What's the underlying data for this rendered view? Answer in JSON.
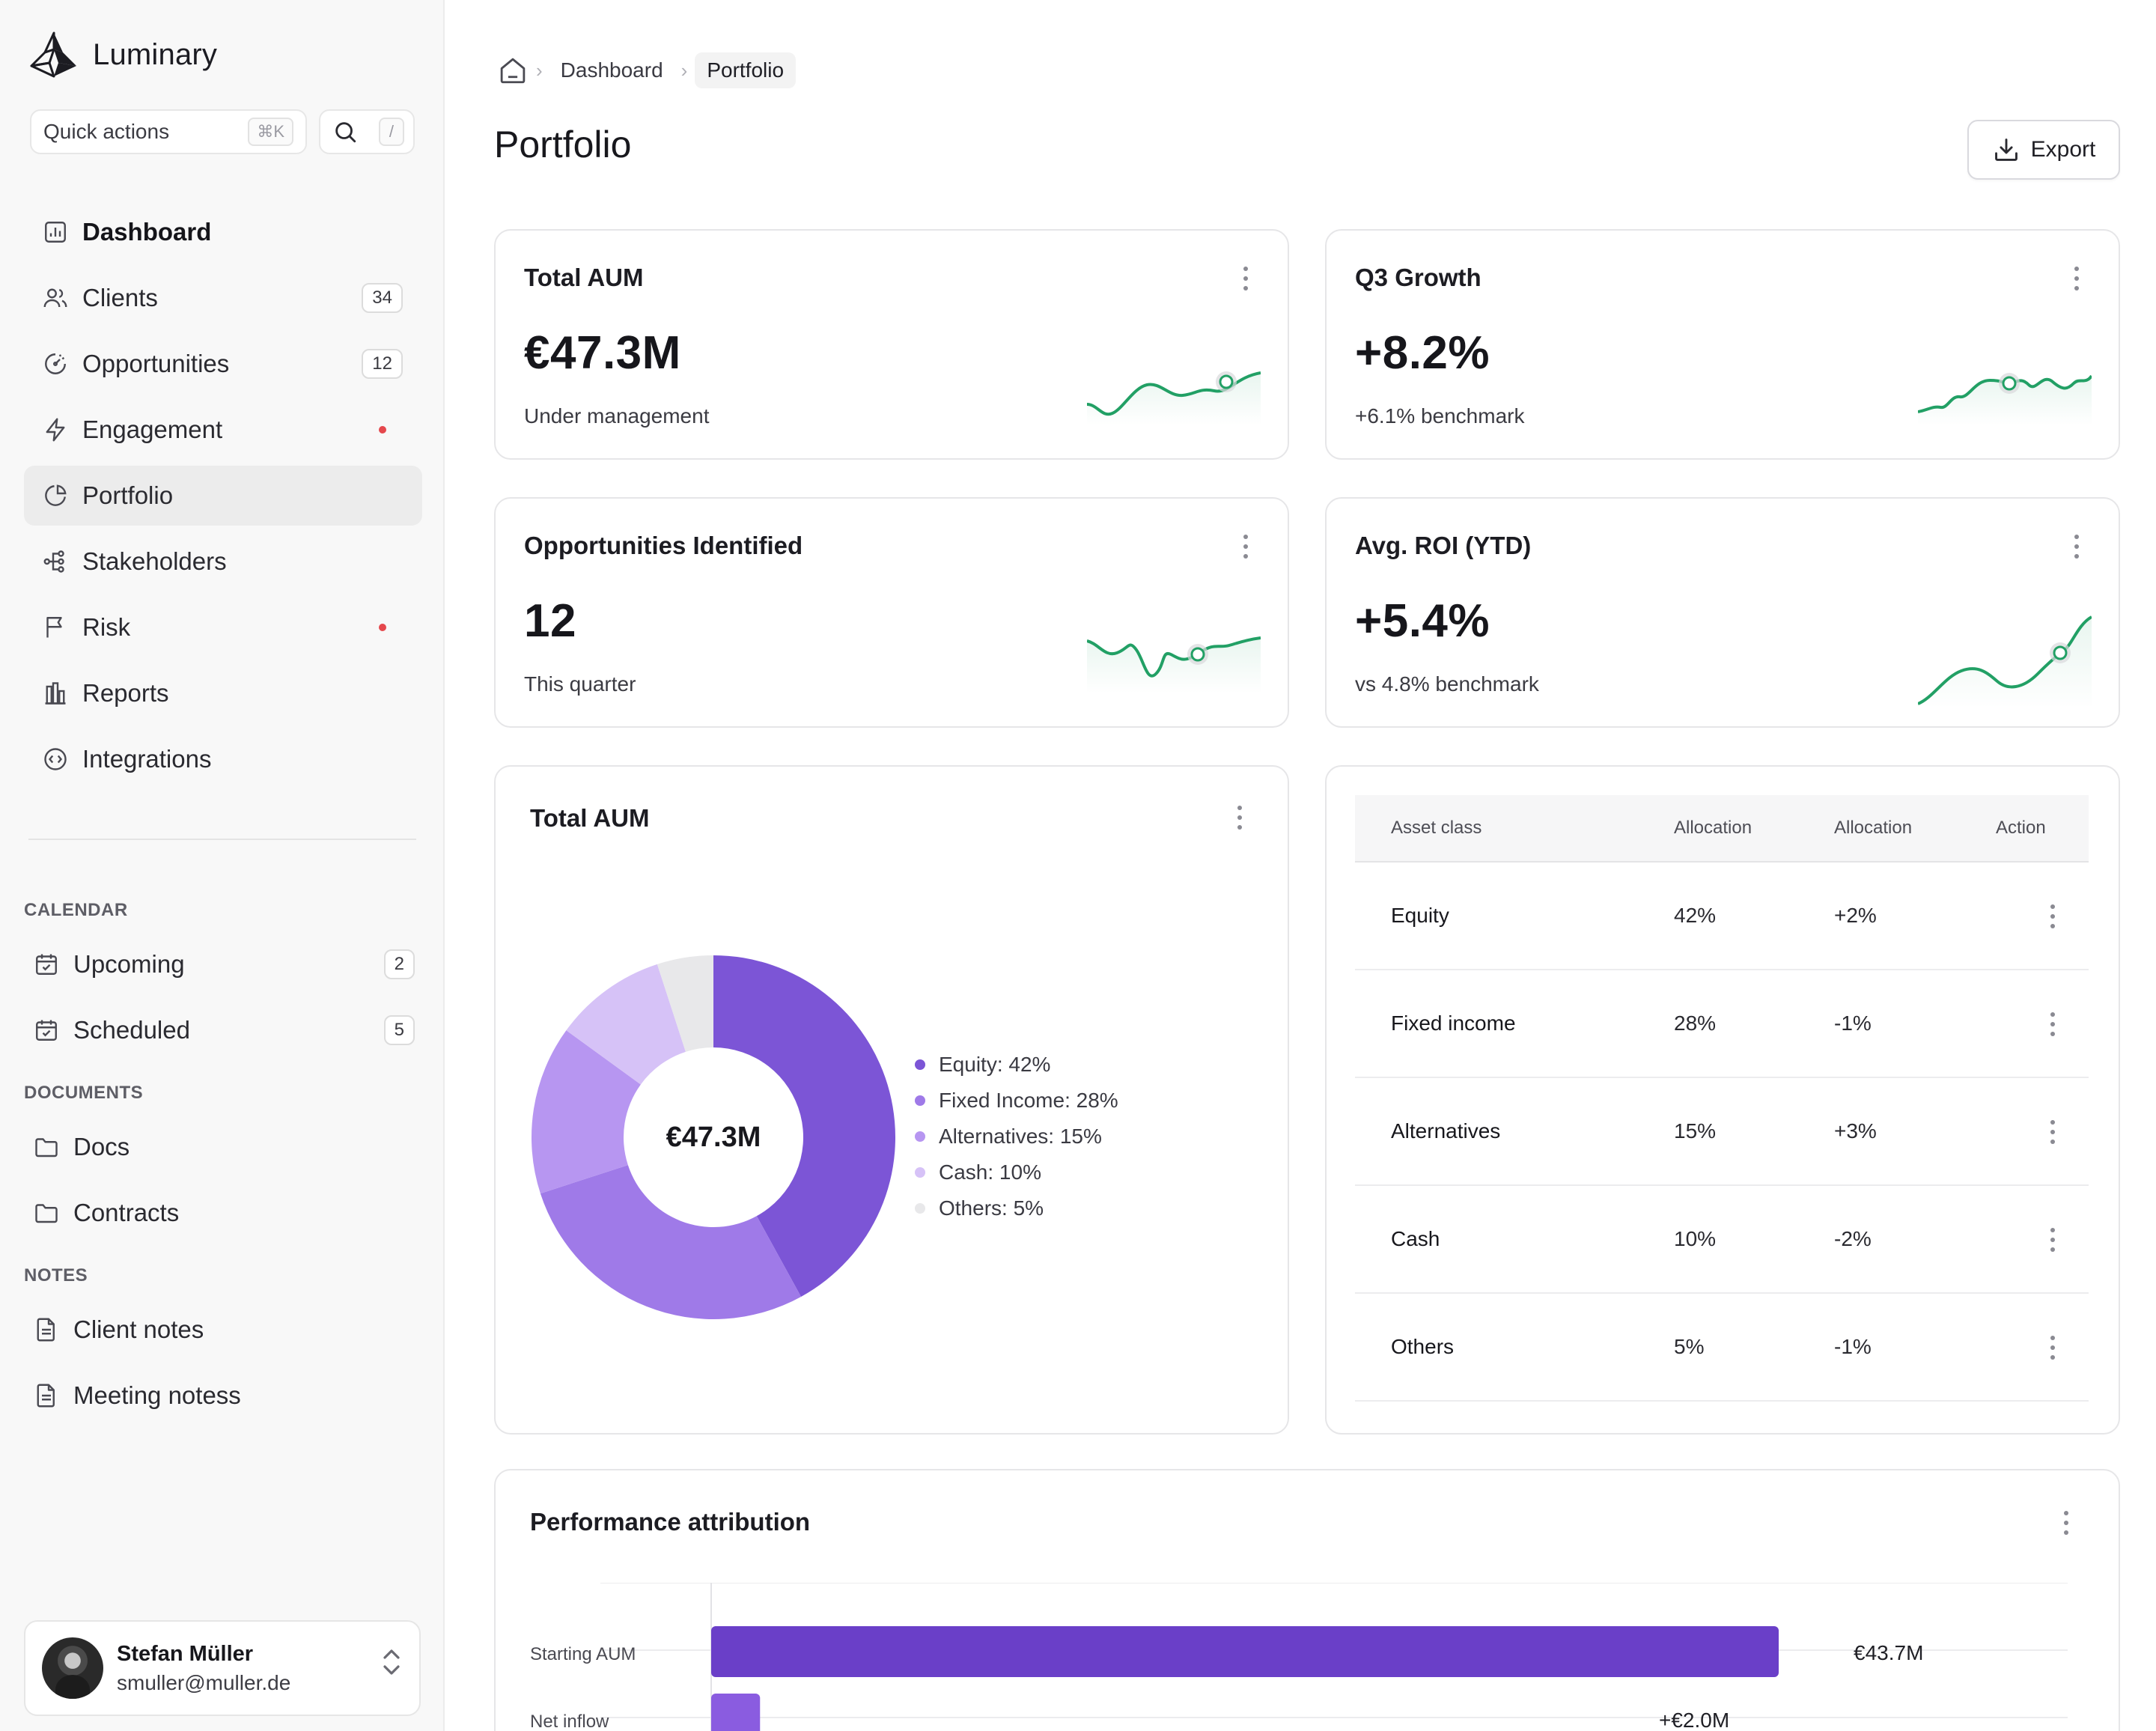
{
  "brand": {
    "name": "Luminary"
  },
  "quick_actions": {
    "label": "Quick actions",
    "shortcut": "⌘K",
    "search_shortcut": "/"
  },
  "nav": {
    "items": [
      {
        "label": "Dashboard",
        "icon": "dashboard-icon",
        "badge": ""
      },
      {
        "label": "Clients",
        "icon": "users-icon",
        "badge": "34"
      },
      {
        "label": "Opportunities",
        "icon": "gauge-icon",
        "badge": "12"
      },
      {
        "label": "Engagement",
        "icon": "bolt-icon",
        "dot": true
      },
      {
        "label": "Portfolio",
        "icon": "pie-icon",
        "active": true
      },
      {
        "label": "Stakeholders",
        "icon": "network-icon"
      },
      {
        "label": "Risk",
        "icon": "flag-icon",
        "dot": true
      },
      {
        "label": "Reports",
        "icon": "bar-chart-icon"
      },
      {
        "label": "Integrations",
        "icon": "code-circle-icon"
      }
    ]
  },
  "sections": {
    "calendar": {
      "title": "CALENDAR",
      "items": [
        {
          "label": "Upcoming",
          "badge": "2"
        },
        {
          "label": "Scheduled",
          "badge": "5"
        }
      ]
    },
    "documents": {
      "title": "DOCUMENTS",
      "items": [
        {
          "label": "Docs"
        },
        {
          "label": "Contracts"
        }
      ]
    },
    "notes": {
      "title": "NOTES",
      "items": [
        {
          "label": "Client notes"
        },
        {
          "label": "Meeting notess"
        }
      ]
    }
  },
  "user": {
    "name": "Stefan Müller",
    "email": "smuller@muller.de"
  },
  "breadcrumb": {
    "items": [
      "Dashboard",
      "Portfolio"
    ]
  },
  "page": {
    "title": "Portfolio",
    "export_label": "Export"
  },
  "stats": [
    {
      "title": "Total AUM",
      "value": "€47.3M",
      "sub": "Under management"
    },
    {
      "title": "Q3 Growth",
      "value": "+8.2%",
      "sub": "+6.1% benchmark"
    },
    {
      "title": "Opportunities Identified",
      "value": "12",
      "sub": "This quarter"
    },
    {
      "title": "Avg. ROI (YTD)",
      "value": "+5.4%",
      "sub": "vs 4.8% benchmark"
    }
  ],
  "allocation_chart": {
    "title": "Total AUM",
    "center_label": "€47.3M",
    "legend": [
      "Equity: 42%",
      "Fixed Income: 28%",
      "Alternatives: 15%",
      "Cash: 10%",
      "Others: 5%"
    ]
  },
  "allocation_table": {
    "headers": [
      "Asset class",
      "Allocation",
      "Allocation",
      "Action"
    ],
    "rows": [
      {
        "name": "Equity",
        "allocation": "42%",
        "change": "+2%"
      },
      {
        "name": "Fixed income",
        "allocation": "28%",
        "change": "-1%"
      },
      {
        "name": "Alternatives",
        "allocation": "15%",
        "change": "+3%"
      },
      {
        "name": "Cash",
        "allocation": "10%",
        "change": "-2%"
      },
      {
        "name": "Others",
        "allocation": "5%",
        "change": "-1%"
      }
    ]
  },
  "performance": {
    "title": "Performance attribution",
    "rows": [
      {
        "label": "Starting AUM",
        "value_label": "€43.7M"
      },
      {
        "label": "Net inflow",
        "value_label": "+€2.0M"
      }
    ]
  },
  "colors": {
    "accent": "#7c55d6",
    "positive": "#22a065",
    "alert_dot": "#e5484d"
  },
  "chart_data": [
    {
      "type": "pie",
      "title": "Total AUM",
      "categories": [
        "Equity",
        "Fixed Income",
        "Alternatives",
        "Cash",
        "Others"
      ],
      "values": [
        42,
        28,
        15,
        10,
        5
      ],
      "colors": [
        "#7c55d6",
        "#9f7ae8",
        "#b796f1",
        "#d6c2f7",
        "#e8e8ea"
      ]
    },
    {
      "type": "bar",
      "title": "Performance attribution",
      "categories": [
        "Starting AUM",
        "Net inflow"
      ],
      "values": [
        43.7,
        2.0
      ],
      "colors": [
        "#6a3fc8",
        "#8a5ce0"
      ]
    }
  ]
}
